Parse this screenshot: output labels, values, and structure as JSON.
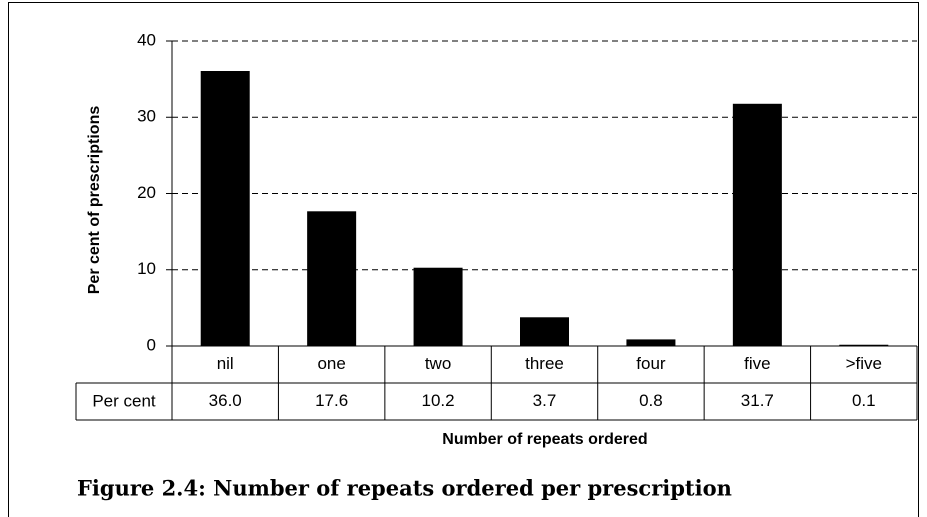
{
  "chart_data": {
    "type": "bar",
    "title": "Figure 2.4: Number of repeats ordered per prescription",
    "y_label": "Per cent of prescriptions",
    "x_label": "Number of repeats ordered",
    "table_row_label": "Per cent",
    "categories": [
      "nil",
      "one",
      "two",
      "three",
      "four",
      "five",
      ">five"
    ],
    "values": [
      36.0,
      17.6,
      10.2,
      3.7,
      0.8,
      31.7,
      0.1
    ],
    "value_labels": [
      "36.0",
      "17.6",
      "10.2",
      "3.7",
      "0.8",
      "31.7",
      "0.1"
    ],
    "color": "#000000",
    "ylim": [
      0,
      40
    ],
    "yticks": [
      0,
      10,
      20,
      30,
      40
    ],
    "grid": true
  }
}
